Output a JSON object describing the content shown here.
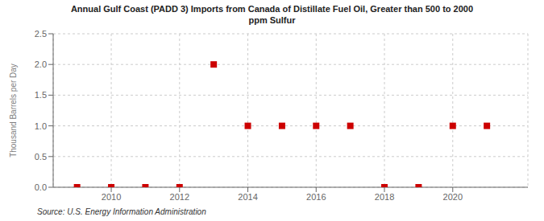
{
  "chart_data": {
    "type": "scatter",
    "title": "Annual Gulf Coast (PADD 3) Imports from Canada of Distillate Fuel Oil, Greater than 500 to 2000\nppm Sulfur",
    "ylabel": "Thousand Barrels per Day",
    "annotations": [
      "Source: U.S. Energy Information Administration"
    ],
    "x": [
      2009,
      2010,
      2011,
      2012,
      2013,
      2014,
      2015,
      2016,
      2017,
      2018,
      2019,
      2020,
      2021
    ],
    "values": [
      0,
      0,
      0,
      0,
      2.0,
      1.0,
      1.0,
      1.0,
      1.0,
      0,
      0,
      1.0,
      1.0
    ],
    "color": "#cc0000",
    "marker": "square",
    "xlim": [
      2008.3,
      2022.2
    ],
    "ylim": [
      0,
      2.5
    ],
    "xticks": [
      2010,
      2012,
      2014,
      2016,
      2018,
      2020
    ],
    "yticks": [
      {
        "value": 0,
        "label": "0.0"
      },
      0.5,
      {
        "value": 1,
        "label": "1.0"
      },
      1.5,
      {
        "value": 2,
        "label": "2.0"
      },
      2.5
    ],
    "grid": true
  }
}
